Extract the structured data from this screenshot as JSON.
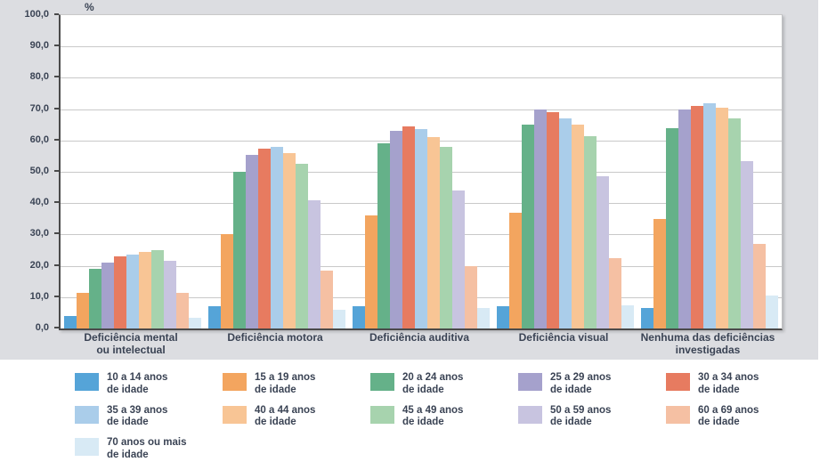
{
  "colors": {
    "panel_background": "#dcdde1",
    "plot_background": "#ffffff",
    "gridline": "#c9c9c9",
    "axis": "#4a4a4a",
    "text": "#3a4354"
  },
  "chart_data": {
    "type": "bar",
    "unit_label": "%",
    "ylim": [
      0,
      100
    ],
    "ytick_step": 10,
    "yticks": [
      "100,0",
      "90,0",
      "80,0",
      "70,0",
      "60,0",
      "50,0",
      "40,0",
      "30,0",
      "20,0",
      "10,0",
      "0,0"
    ],
    "grid": true,
    "legend_position": "bottom",
    "categories": [
      "Deficiência mental\nou intelectual",
      "Deficiência motora",
      "Deficiência auditiva",
      "Deficiência visual",
      "Nenhuma das deficiências\ninvestigadas"
    ],
    "series": [
      {
        "name": "10 a 14 anos de idade",
        "label": "10 a 14 anos\nde idade",
        "color": "#55a4d8",
        "values": [
          4.0,
          7.0,
          7.0,
          7.0,
          6.5
        ]
      },
      {
        "name": "15 a 19 anos de idade",
        "label": "15 a 19 anos\nde idade",
        "color": "#f3a55f",
        "values": [
          11.5,
          30.0,
          36.0,
          37.0,
          35.0
        ]
      },
      {
        "name": "20 a 24 anos de idade",
        "label": "20 a 24 anos\nde idade",
        "color": "#65b189",
        "values": [
          19.0,
          50.0,
          59.0,
          65.0,
          64.0
        ]
      },
      {
        "name": "25 a 29 anos de idade",
        "label": "25 a 29 anos\nde idade",
        "color": "#a5a1cc",
        "values": [
          21.0,
          55.5,
          63.0,
          70.0,
          70.0
        ]
      },
      {
        "name": "30 a 34 anos de idade",
        "label": "30 a 34 anos\nde idade",
        "color": "#e77b60",
        "values": [
          23.0,
          57.5,
          64.5,
          69.0,
          71.0
        ]
      },
      {
        "name": "35 a 39 anos de idade",
        "label": "35 a 39 anos\nde idade",
        "color": "#aacdea",
        "values": [
          23.5,
          58.0,
          63.5,
          67.0,
          72.0
        ]
      },
      {
        "name": "40 a 44 anos de idade",
        "label": "40 a 44 anos\nde idade",
        "color": "#f8c595",
        "values": [
          24.5,
          56.0,
          61.0,
          65.0,
          70.5
        ]
      },
      {
        "name": "45 a 49 anos de idade",
        "label": "45 a 49 anos\nde idade",
        "color": "#a7d3ae",
        "values": [
          25.0,
          52.5,
          58.0,
          61.5,
          67.0
        ]
      },
      {
        "name": "50 a 59 anos de idade",
        "label": "50 a 59 anos\nde idade",
        "color": "#c8c4e0",
        "values": [
          21.5,
          41.0,
          44.0,
          48.5,
          53.5
        ]
      },
      {
        "name": "60 a 69 anos de idade",
        "label": "60 a 69 anos\nde idade",
        "color": "#f5c0a3",
        "values": [
          11.5,
          18.5,
          20.0,
          22.5,
          27.0
        ]
      },
      {
        "name": "70 anos ou mais de idade",
        "label": "70 anos ou mais\nde idade",
        "color": "#d8eaf5",
        "values": [
          3.5,
          6.0,
          6.5,
          7.5,
          10.5
        ]
      }
    ]
  }
}
